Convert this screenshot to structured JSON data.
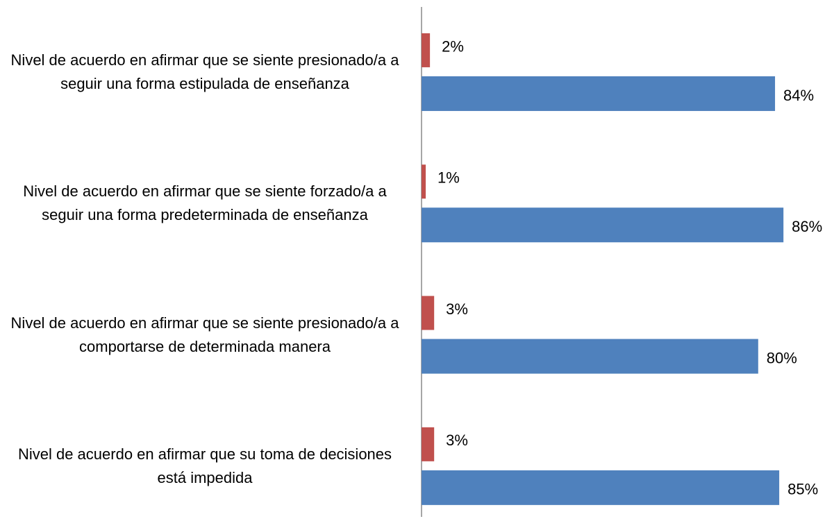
{
  "chart_data": {
    "type": "bar",
    "orientation": "horizontal",
    "categories": [
      "Nivel de acuerdo en afirmar que se siente presionado/a a seguir una forma estipulada de enseñanza",
      "Nivel de acuerdo en afirmar que se siente forzado/a a seguir una forma predeterminada de enseñanza",
      "Nivel de acuerdo en afirmar que se siente presionado/a a comportarse de determinada manera",
      "Nivel de acuerdo en afirmar que su toma de decisiones está impedida"
    ],
    "series": [
      {
        "color": "#c0504d",
        "values": [
          2,
          1,
          3,
          3
        ],
        "value_labels": [
          "2%",
          "1%",
          "3%",
          "3%"
        ]
      },
      {
        "color": "#4f81bd",
        "values": [
          84,
          86,
          80,
          85
        ],
        "value_labels": [
          "84%",
          "86%",
          "80%",
          "85%"
        ]
      }
    ],
    "xlim": [
      0,
      100
    ]
  }
}
